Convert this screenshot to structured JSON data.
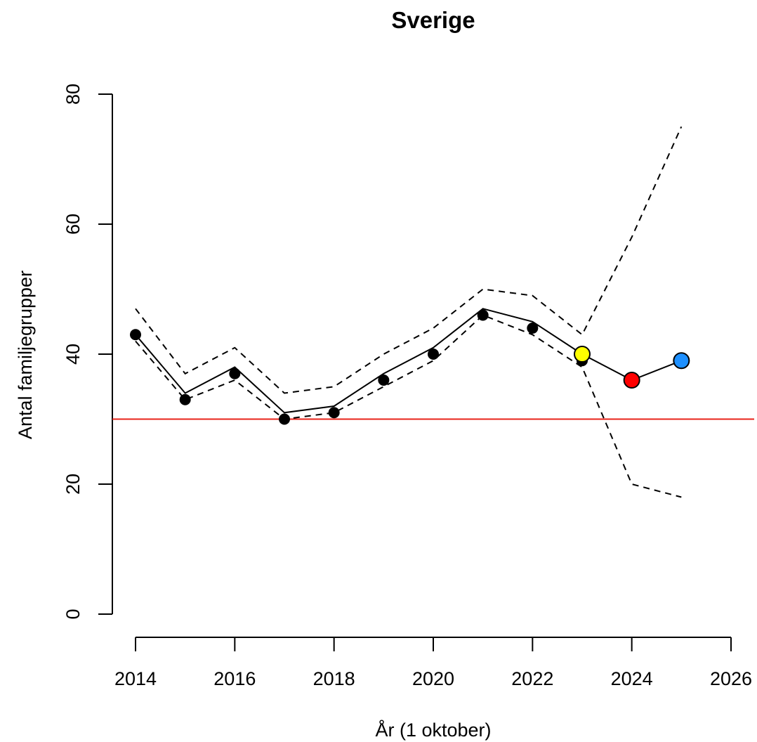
{
  "chart_data": {
    "type": "line",
    "title": "Sverige",
    "xlabel": "År (1 oktober)",
    "ylabel": "Antal familjegrupper",
    "xlim": [
      2014,
      2026
    ],
    "ylim": [
      0,
      80
    ],
    "x_ticks": [
      "2014",
      "2016",
      "2018",
      "2020",
      "2022",
      "2024",
      "2026"
    ],
    "y_ticks": [
      "0",
      "20",
      "40",
      "60",
      "80"
    ],
    "grid": false,
    "reference_line": {
      "y": 30,
      "color": "#e8231a"
    },
    "observed": {
      "x": [
        2014,
        2015,
        2016,
        2017,
        2018,
        2019,
        2020,
        2021,
        2022,
        2023
      ],
      "y": [
        43,
        33,
        37,
        30,
        31,
        36,
        40,
        46,
        44,
        39
      ],
      "color": "#000000"
    },
    "estimate": {
      "x": [
        2014,
        2015,
        2016,
        2017,
        2018,
        2019,
        2020,
        2021,
        2022,
        2023,
        2024,
        2025
      ],
      "y": [
        43,
        34,
        38,
        31,
        32,
        37,
        41,
        47,
        45,
        40,
        36,
        39
      ]
    },
    "upper_bound": {
      "x": [
        2014,
        2015,
        2016,
        2017,
        2018,
        2019,
        2020,
        2021,
        2022,
        2023,
        2024,
        2025
      ],
      "y": [
        47,
        37,
        41,
        34,
        35,
        40,
        44,
        50,
        49,
        43,
        58,
        75
      ]
    },
    "lower_bound": {
      "x": [
        2014,
        2015,
        2016,
        2017,
        2018,
        2019,
        2020,
        2021,
        2022,
        2023,
        2024,
        2025
      ],
      "y": [
        42,
        33,
        36,
        30,
        31,
        35,
        39,
        46,
        43,
        38,
        20,
        18
      ]
    },
    "highlight_points": [
      {
        "x": 2023,
        "y": 40,
        "color": "#ffff00"
      },
      {
        "x": 2024,
        "y": 36,
        "color": "#ff0000"
      },
      {
        "x": 2025,
        "y": 39,
        "color": "#1e90ff"
      }
    ]
  }
}
